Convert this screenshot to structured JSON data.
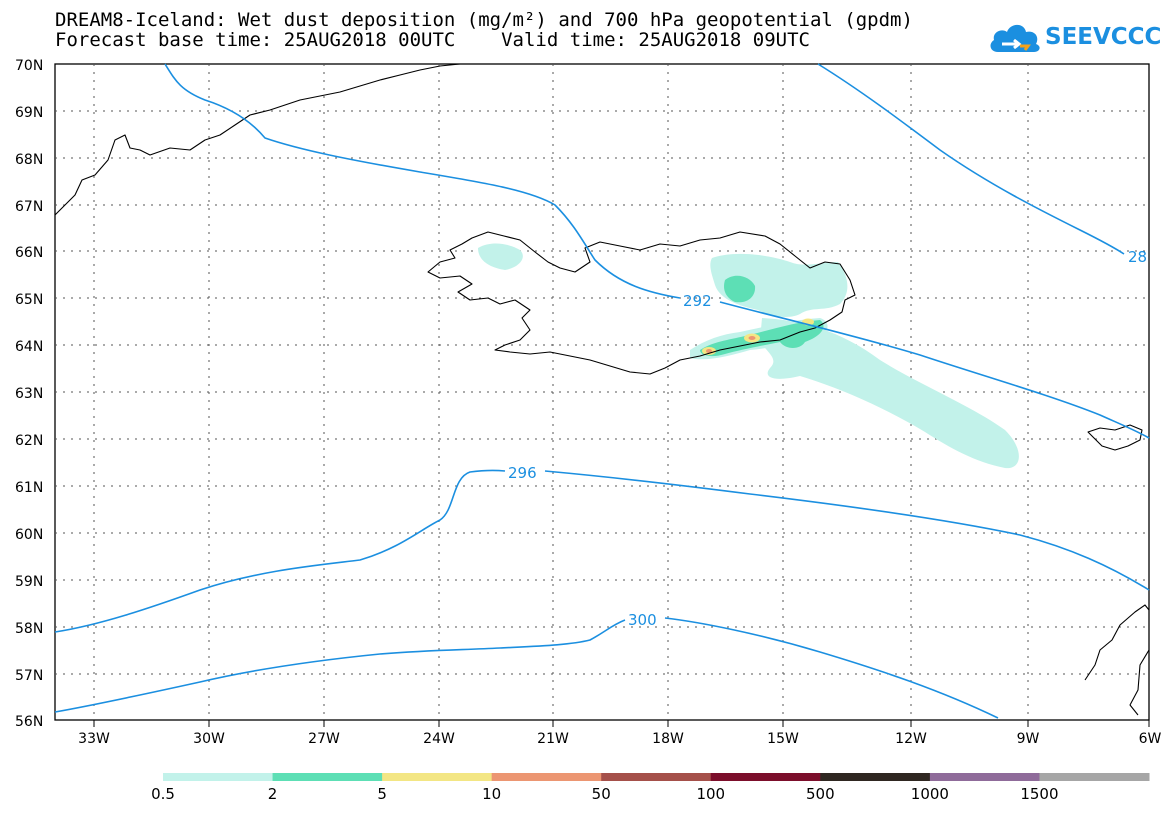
{
  "title_line1": "DREAM8-Iceland: Wet dust deposition (mg/m²) and 700 hPa geopotential (gpdm)",
  "title_line2": "Forecast base time: 25AUG2018 00UTC    Valid time: 25AUG2018 09UTC",
  "logo_text": "SEEVCCC",
  "logo_icon": "cloud-icon",
  "lat_labels": [
    "70N",
    "69N",
    "68N",
    "67N",
    "66N",
    "65N",
    "64N",
    "63N",
    "62N",
    "61N",
    "60N",
    "59N",
    "58N",
    "57N",
    "56N"
  ],
  "lon_labels": [
    "33W",
    "30W",
    "27W",
    "24W",
    "21W",
    "18W",
    "15W",
    "12W",
    "9W",
    "6W"
  ],
  "contours": [
    {
      "label": "292",
      "color": "#1b8fe0"
    },
    {
      "label": "296",
      "color": "#1b8fe0"
    },
    {
      "label": "300",
      "color": "#1b8fe0"
    },
    {
      "label": "28",
      "color": "#1b8fe0"
    }
  ],
  "colorbar": {
    "labels": [
      "0.5",
      "2",
      "5",
      "10",
      "50",
      "100",
      "500",
      "1000",
      "1500"
    ],
    "colors": [
      "#c2f2ea",
      "#5ddfb5",
      "#f3e684",
      "#ec9672",
      "#a5504a",
      "#7c0e2b",
      "#2f2721",
      "#8f6b9a",
      "#a6a6a6"
    ]
  },
  "map": {
    "lon_range": [
      "34.5W",
      "6W"
    ],
    "lat_range": [
      "56N",
      "70N"
    ],
    "grid": "dotted",
    "deposition_regions": [
      "Iceland south coast",
      "NE Iceland",
      "plume SE of Iceland"
    ]
  }
}
